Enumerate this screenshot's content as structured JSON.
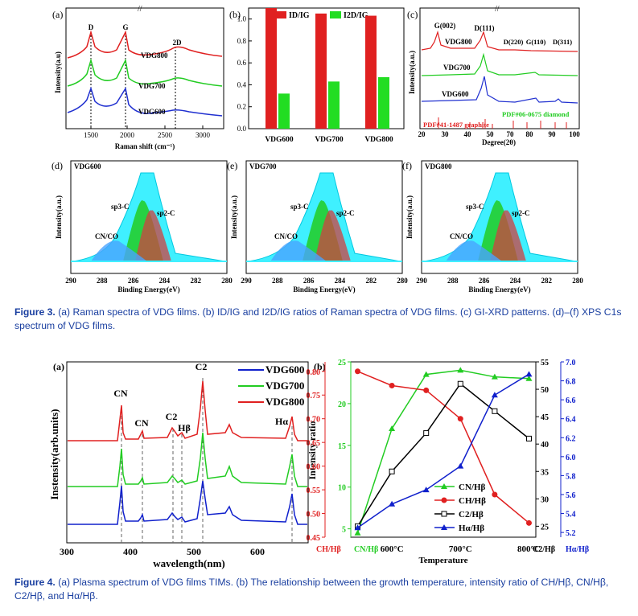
{
  "figure3": {
    "caption_label": "Figure 3.",
    "caption_text": "(a) Raman spectra of VDG films. (b) ID/IG and I2D/IG ratios of Raman spectra of VDG films. (c) GI-XRD patterns. (d)–(f) XPS C1s spectrum of VDG films.",
    "panel_a": {
      "label": "(a)",
      "ylabel": "Intensity(a.u)",
      "xlabel": "Raman shift (cm⁻¹)",
      "xticks": [
        "1500",
        "2000",
        "2500",
        "3000"
      ],
      "peaks": [
        "D",
        "G",
        "2D"
      ],
      "series": [
        "VDG800",
        "VDG700",
        "VDG600"
      ],
      "colors": [
        "#e02020",
        "#22cc22",
        "#2030d0"
      ]
    },
    "panel_b": {
      "label": "(b)",
      "legend": [
        "ID/IG",
        "I2D/IG"
      ],
      "yticks": [
        "0.0",
        "0.2",
        "0.4",
        "0.6",
        "0.8",
        "1.0"
      ],
      "chart_data": {
        "type": "bar",
        "categories": [
          "VDG600",
          "VDG700",
          "VDG800"
        ],
        "series": [
          {
            "name": "ID/IG",
            "values": [
              1.1,
              1.05,
              1.03
            ]
          },
          {
            "name": "I2D/IG",
            "values": [
              0.32,
              0.43,
              0.47
            ]
          }
        ],
        "ylim": [
          0,
          1.1
        ]
      }
    },
    "panel_c": {
      "label": "(c)",
      "ylabel": "Intensity(a.u.)",
      "xlabel": "Degree(2θ)",
      "xticks": [
        "20",
        "30",
        "40",
        "50",
        "70",
        "80",
        "90",
        "100"
      ],
      "peaks": [
        "G(002)",
        "D(111)",
        "D(220)",
        "G(110)",
        "D(311)"
      ],
      "series": [
        "VDG800",
        "VDG700",
        "VDG600"
      ],
      "ref_graphite": "PDF#41-1487 graphite",
      "ref_diamond": "PDF#06-0675 diamond"
    },
    "xps_panels": [
      {
        "label": "(d)",
        "sample": "VDG600"
      },
      {
        "label": "(e)",
        "sample": "VDG700"
      },
      {
        "label": "(f)",
        "sample": "VDG800"
      }
    ],
    "xps": {
      "ylabel": "Intensity(a.u.)",
      "xlabel": "Binding Energy(eV)",
      "xticks": [
        "290",
        "288",
        "286",
        "284",
        "282",
        "280"
      ],
      "components": [
        "CN/CO",
        "sp3-C",
        "sp2-C"
      ]
    }
  },
  "figure4": {
    "caption_label": "Figure 4.",
    "caption_text": "(a) Plasma spectrum of VDG films TIMs. (b) The relationship between the growth temperature, intensity ratio of CH/Hβ, CN/Hβ, C2/Hβ, and Hα/Hβ.",
    "panel_a": {
      "label": "(a)",
      "ylabel": "Instensity(arb.units)",
      "xlabel": "wavelength(nm)",
      "xticks": [
        "300",
        "400",
        "500",
        "600"
      ],
      "lines": [
        "CN",
        "CN",
        "C2",
        "Hβ",
        "C2",
        "Hα"
      ],
      "legend": [
        "VDG600",
        "VDG700",
        "VDG800"
      ],
      "colors": [
        "#1020cc",
        "#22cc22",
        "#e02020"
      ]
    },
    "panel_b": {
      "label": "(b)",
      "ylabel": "Intensity ratio",
      "xlabel": "Temperature",
      "xticks": [
        "600°C",
        "700°C",
        "800°C"
      ],
      "axis_ch": {
        "label": "CH/Hβ",
        "ticks": [
          "0.45",
          "0.50",
          "0.55",
          "0.60",
          "0.65",
          "0.70",
          "0.75",
          "0.80"
        ],
        "color": "#e02020"
      },
      "axis_cn": {
        "label": "CN/Hβ",
        "ticks": [
          "5",
          "10",
          "15",
          "20",
          "25"
        ],
        "color": "#22cc22"
      },
      "axis_c2": {
        "label": "C2/Hβ",
        "ticks": [
          "25",
          "30",
          "35",
          "40",
          "45",
          "50",
          "55"
        ],
        "color": "#000000"
      },
      "axis_ha": {
        "label": "Hα/Hβ",
        "ticks": [
          "5.2",
          "5.4",
          "5.6",
          "5.8",
          "6.0",
          "6.2",
          "6.4",
          "6.6",
          "6.8",
          "7.0"
        ],
        "color": "#1020cc"
      },
      "chart_data": {
        "type": "line",
        "x": [
          550,
          600,
          650,
          700,
          750,
          800
        ],
        "series": [
          {
            "name": "CN/Hβ",
            "values": [
              4.5,
              17,
              23.5,
              24,
              23.2,
              23
            ]
          },
          {
            "name": "CH/Hβ",
            "values": [
              0.8,
              0.77,
              0.76,
              0.7,
              0.54,
              0.48
            ]
          },
          {
            "name": "C2/Hβ",
            "values": [
              25,
              35,
              42,
              51,
              46,
              41
            ]
          },
          {
            "name": "Hα/Hβ",
            "values": [
              5.25,
              5.5,
              5.65,
              5.9,
              6.65,
              6.87
            ]
          }
        ]
      }
    }
  }
}
